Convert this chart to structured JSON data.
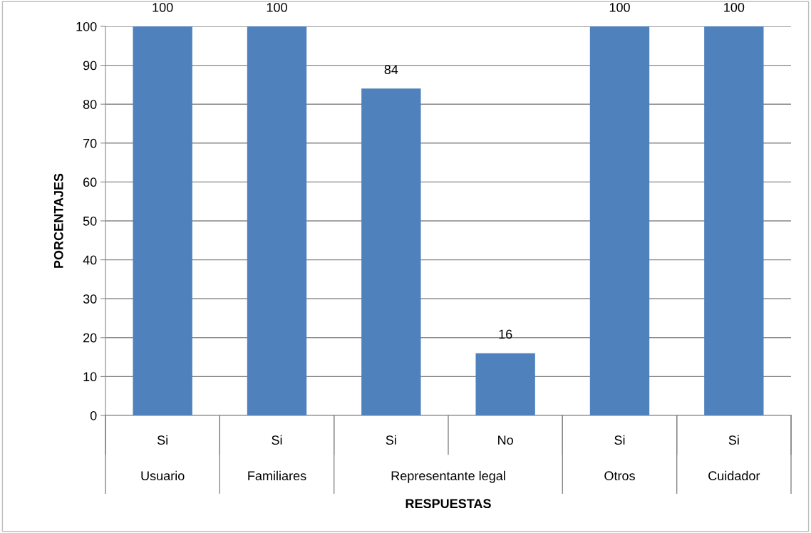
{
  "chart_data": {
    "type": "bar",
    "xlabel": "RESPUESTAS",
    "ylabel": "PORCENTAJES",
    "categories": [
      "Si",
      "Si",
      "Si",
      "No",
      "Si",
      "Si"
    ],
    "values": [
      100,
      100,
      84,
      16,
      100,
      100
    ],
    "color": "#4f81bd",
    "ylim": [
      0,
      100
    ],
    "yticks": [
      0,
      10,
      20,
      30,
      40,
      50,
      60,
      70,
      80,
      90,
      100
    ],
    "grid": "y",
    "data_labels": true,
    "annotations": [
      "Usuario",
      "Familiares",
      "Representante legal",
      "Otros",
      "Cuidador"
    ]
  }
}
